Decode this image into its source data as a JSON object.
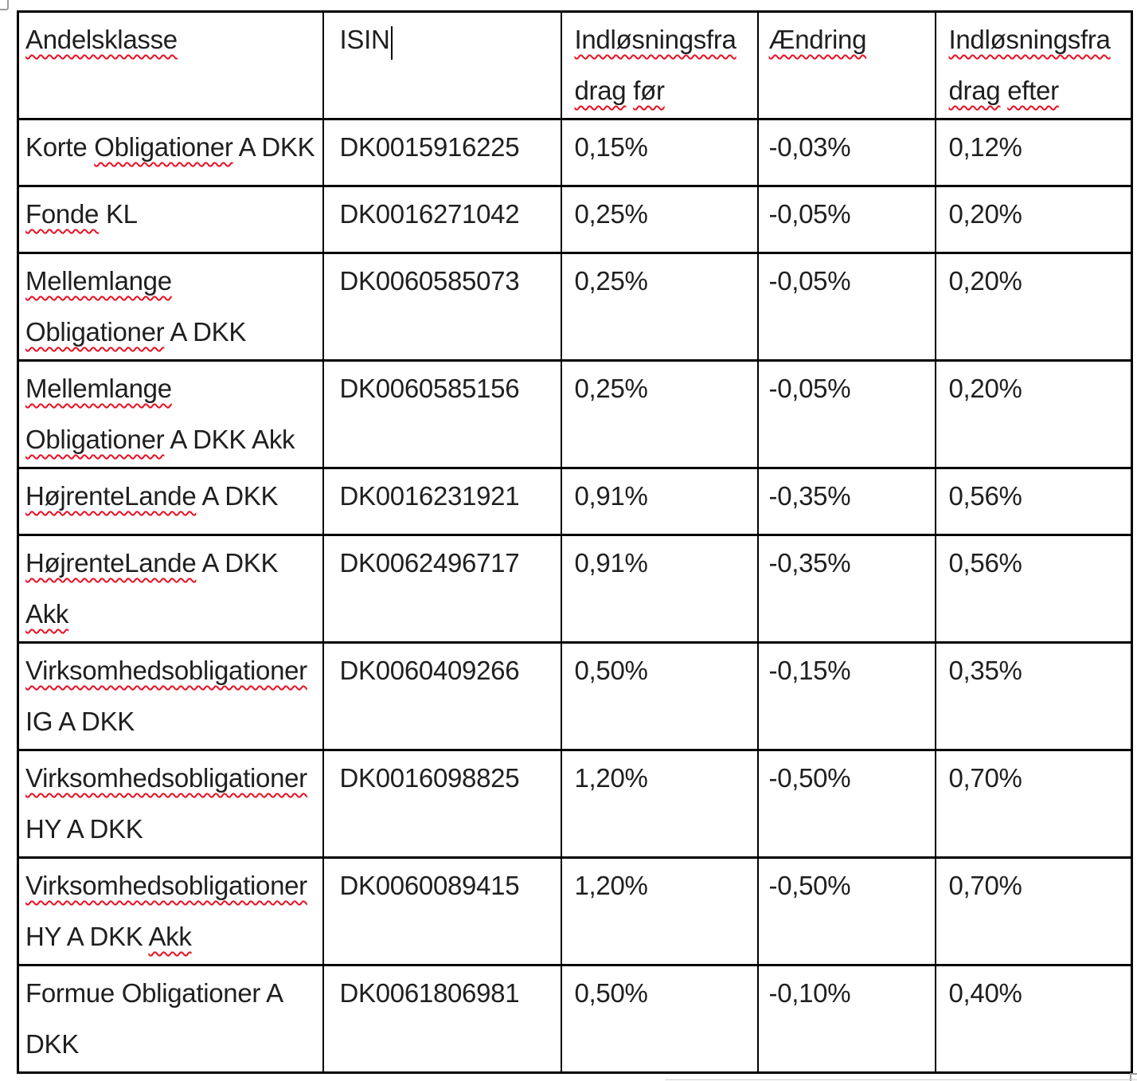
{
  "document": {
    "colors": {
      "text": "#1f1f1f",
      "border": "#000000",
      "squiggle": "#e81123",
      "artifact_gray": "#9b9b9b",
      "background": "#ffffff"
    }
  },
  "table": {
    "header": {
      "cells": [
        {
          "name": "andelsklasse",
          "caret": false,
          "lines": [
            [
              {
                "t": "Andelsklasse",
                "s": true
              }
            ]
          ]
        },
        {
          "name": "isin",
          "caret": true,
          "lines": [
            [
              {
                "t": "ISIN",
                "s": false
              }
            ]
          ]
        },
        {
          "name": "indloesningsfradrag-foer",
          "caret": false,
          "lines": [
            [
              {
                "t": "Indløsningsfra",
                "s": true
              }
            ],
            [
              {
                "t": "drag",
                "s": true
              },
              {
                "t": " ",
                "s": false
              },
              {
                "t": "før",
                "s": true
              }
            ]
          ]
        },
        {
          "name": "aendring",
          "caret": false,
          "lines": [
            [
              {
                "t": "Ændring",
                "s": true
              }
            ]
          ]
        },
        {
          "name": "indloesningsfradrag-efter",
          "caret": false,
          "lines": [
            [
              {
                "t": "Indløsningsfra",
                "s": true
              }
            ],
            [
              {
                "t": "drag",
                "s": true
              },
              {
                "t": " ",
                "s": false
              },
              {
                "t": "efter",
                "s": true
              }
            ]
          ]
        }
      ]
    },
    "rows": [
      {
        "cells": [
          {
            "lines": [
              [
                {
                  "t": "Korte ",
                  "s": false
                },
                {
                  "t": "Obligationer",
                  "s": true
                },
                {
                  "t": " A DKK",
                  "s": false
                }
              ]
            ]
          },
          {
            "lines": [
              [
                {
                  "t": "DK0015916225",
                  "s": false
                }
              ]
            ]
          },
          {
            "lines": [
              [
                {
                  "t": "0,15%",
                  "s": false
                }
              ]
            ]
          },
          {
            "lines": [
              [
                {
                  "t": "-0,03%",
                  "s": false
                }
              ]
            ]
          },
          {
            "lines": [
              [
                {
                  "t": "0,12%",
                  "s": false
                }
              ]
            ]
          }
        ]
      },
      {
        "cells": [
          {
            "lines": [
              [
                {
                  "t": "Fonde",
                  "s": true
                },
                {
                  "t": " KL",
                  "s": false
                }
              ]
            ]
          },
          {
            "lines": [
              [
                {
                  "t": "DK0016271042",
                  "s": false
                }
              ]
            ]
          },
          {
            "lines": [
              [
                {
                  "t": "0,25%",
                  "s": false
                }
              ]
            ]
          },
          {
            "lines": [
              [
                {
                  "t": "-0,05%",
                  "s": false
                }
              ]
            ]
          },
          {
            "lines": [
              [
                {
                  "t": "0,20%",
                  "s": false
                }
              ]
            ]
          }
        ]
      },
      {
        "cells": [
          {
            "lines": [
              [
                {
                  "t": "Mellemlange",
                  "s": true
                }
              ],
              [
                {
                  "t": "Obligationer",
                  "s": true
                },
                {
                  "t": " A DKK",
                  "s": false
                }
              ]
            ]
          },
          {
            "lines": [
              [
                {
                  "t": "DK0060585073",
                  "s": false
                }
              ]
            ]
          },
          {
            "lines": [
              [
                {
                  "t": "0,25%",
                  "s": false
                }
              ]
            ]
          },
          {
            "lines": [
              [
                {
                  "t": "-0,05%",
                  "s": false
                }
              ]
            ]
          },
          {
            "lines": [
              [
                {
                  "t": "0,20%",
                  "s": false
                }
              ]
            ]
          }
        ]
      },
      {
        "cells": [
          {
            "lines": [
              [
                {
                  "t": "Mellemlange",
                  "s": true
                }
              ],
              [
                {
                  "t": "Obligationer",
                  "s": true
                },
                {
                  "t": " A DKK Akk",
                  "s": false
                }
              ]
            ]
          },
          {
            "lines": [
              [
                {
                  "t": "DK0060585156",
                  "s": false
                }
              ]
            ]
          },
          {
            "lines": [
              [
                {
                  "t": "0,25%",
                  "s": false
                }
              ]
            ]
          },
          {
            "lines": [
              [
                {
                  "t": "-0,05%",
                  "s": false
                }
              ]
            ]
          },
          {
            "lines": [
              [
                {
                  "t": "0,20%",
                  "s": false
                }
              ]
            ]
          }
        ]
      },
      {
        "cells": [
          {
            "lines": [
              [
                {
                  "t": "HøjrenteLande",
                  "s": true
                },
                {
                  "t": " A DKK",
                  "s": false
                }
              ]
            ]
          },
          {
            "lines": [
              [
                {
                  "t": "DK0016231921",
                  "s": false
                }
              ]
            ]
          },
          {
            "lines": [
              [
                {
                  "t": "0,91%",
                  "s": false
                }
              ]
            ]
          },
          {
            "lines": [
              [
                {
                  "t": "-0,35%",
                  "s": false
                }
              ]
            ]
          },
          {
            "lines": [
              [
                {
                  "t": "0,56%",
                  "s": false
                }
              ]
            ]
          }
        ]
      },
      {
        "cells": [
          {
            "lines": [
              [
                {
                  "t": "HøjrenteLande",
                  "s": true
                },
                {
                  "t": " A DKK",
                  "s": false
                }
              ],
              [
                {
                  "t": "Akk",
                  "s": true
                }
              ]
            ]
          },
          {
            "lines": [
              [
                {
                  "t": "DK0062496717",
                  "s": false
                }
              ]
            ]
          },
          {
            "lines": [
              [
                {
                  "t": "0,91%",
                  "s": false
                }
              ]
            ]
          },
          {
            "lines": [
              [
                {
                  "t": "-0,35%",
                  "s": false
                }
              ]
            ]
          },
          {
            "lines": [
              [
                {
                  "t": "0,56%",
                  "s": false
                }
              ]
            ]
          }
        ]
      },
      {
        "cells": [
          {
            "lines": [
              [
                {
                  "t": "Virksomhedsobligationer",
                  "s": true
                }
              ],
              [
                {
                  "t": "IG A DKK",
                  "s": false
                }
              ]
            ]
          },
          {
            "lines": [
              [
                {
                  "t": "DK0060409266",
                  "s": false
                }
              ]
            ]
          },
          {
            "lines": [
              [
                {
                  "t": "0,50%",
                  "s": false
                }
              ]
            ]
          },
          {
            "lines": [
              [
                {
                  "t": "-0,15%",
                  "s": false
                }
              ]
            ]
          },
          {
            "lines": [
              [
                {
                  "t": "0,35%",
                  "s": false
                }
              ]
            ]
          }
        ]
      },
      {
        "cells": [
          {
            "lines": [
              [
                {
                  "t": "Virksomhedsobligationer",
                  "s": true
                }
              ],
              [
                {
                  "t": "HY A DKK",
                  "s": false
                }
              ]
            ]
          },
          {
            "lines": [
              [
                {
                  "t": "DK0016098825",
                  "s": false
                }
              ]
            ]
          },
          {
            "lines": [
              [
                {
                  "t": "1,20%",
                  "s": false
                }
              ]
            ]
          },
          {
            "lines": [
              [
                {
                  "t": "-0,50%",
                  "s": false
                }
              ]
            ]
          },
          {
            "lines": [
              [
                {
                  "t": "0,70%",
                  "s": false
                }
              ]
            ]
          }
        ]
      },
      {
        "cells": [
          {
            "lines": [
              [
                {
                  "t": "Virksomhedsobligationer",
                  "s": true
                }
              ],
              [
                {
                  "t": "HY A DKK ",
                  "s": false
                },
                {
                  "t": "Akk",
                  "s": true
                }
              ]
            ]
          },
          {
            "lines": [
              [
                {
                  "t": "DK0060089415",
                  "s": false
                }
              ]
            ]
          },
          {
            "lines": [
              [
                {
                  "t": "1,20%",
                  "s": false
                }
              ]
            ]
          },
          {
            "lines": [
              [
                {
                  "t": "-0,50%",
                  "s": false
                }
              ]
            ]
          },
          {
            "lines": [
              [
                {
                  "t": "0,70%",
                  "s": false
                }
              ]
            ]
          }
        ]
      },
      {
        "cells": [
          {
            "lines": [
              [
                {
                  "t": "Formue Obligationer A",
                  "s": false
                }
              ],
              [
                {
                  "t": "DKK",
                  "s": false
                }
              ]
            ]
          },
          {
            "lines": [
              [
                {
                  "t": "DK0061806981",
                  "s": false
                }
              ]
            ]
          },
          {
            "lines": [
              [
                {
                  "t": "0,50%",
                  "s": false
                }
              ]
            ]
          },
          {
            "lines": [
              [
                {
                  "t": "-0,10%",
                  "s": false
                }
              ]
            ]
          },
          {
            "lines": [
              [
                {
                  "t": "0,40%",
                  "s": false
                }
              ]
            ]
          }
        ]
      }
    ]
  }
}
